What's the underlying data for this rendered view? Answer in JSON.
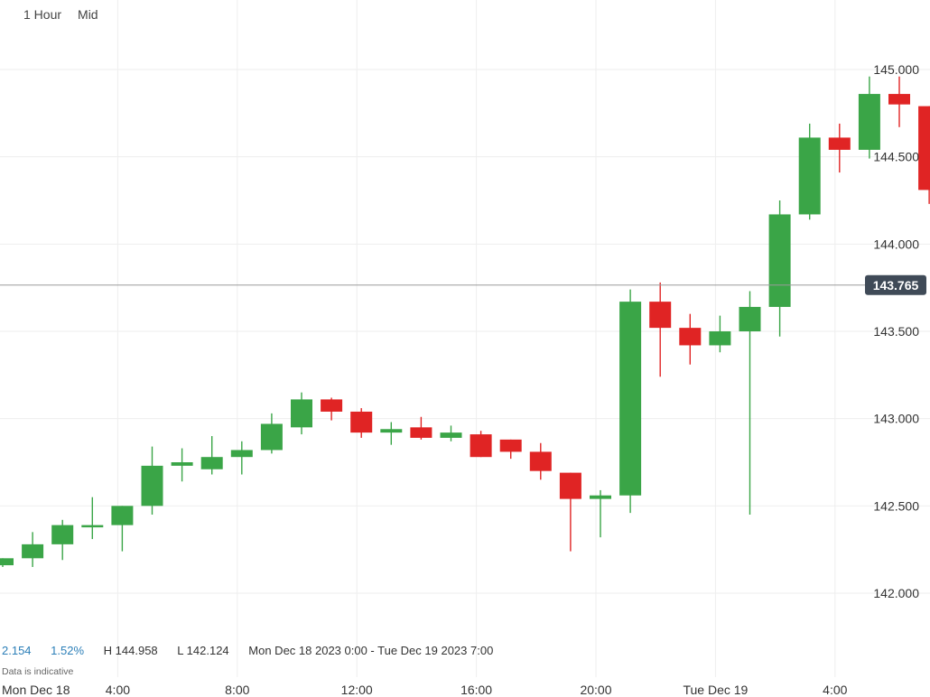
{
  "toolbar": {
    "interval": "1 Hour",
    "price_type": "Mid"
  },
  "stats": {
    "change": "2.154",
    "change_pct": "1.52%",
    "high": "H 144.958",
    "low": "L 142.124",
    "range": "Mon Dec 18 2023 0:00 - Tue Dec 19 2023 7:00"
  },
  "note": "Data is indicative",
  "colors": {
    "up": "#3aa547",
    "down": "#e02424",
    "grid": "#eeeeee",
    "current_line": "#9a9a9a",
    "current_bg": "#3f4a57"
  },
  "chart_data": {
    "type": "candlestick",
    "y_ticks": [
      "142.000",
      "142.500",
      "143.000",
      "143.500",
      "144.000",
      "144.500",
      "145.000"
    ],
    "ylim": [
      141.65,
      145.2
    ],
    "x_tick_labels": [
      "Mon Dec 18",
      "4:00",
      "8:00",
      "12:00",
      "16:00",
      "20:00",
      "Tue Dec 19",
      "4:00"
    ],
    "current_price": "143.765",
    "candles": [
      {
        "hour": "Mon 1:00",
        "o": 142.16,
        "h": 142.2,
        "l": 142.15,
        "c": 142.2
      },
      {
        "hour": "Mon 2:00",
        "o": 142.2,
        "h": 142.35,
        "l": 142.15,
        "c": 142.28
      },
      {
        "hour": "Mon 3:00",
        "o": 142.28,
        "h": 142.42,
        "l": 142.19,
        "c": 142.39
      },
      {
        "hour": "Mon 4:00",
        "o": 142.39,
        "h": 142.55,
        "l": 142.31,
        "c": 142.39
      },
      {
        "hour": "Mon 5:00",
        "o": 142.39,
        "h": 142.5,
        "l": 142.24,
        "c": 142.5
      },
      {
        "hour": "Mon 6:00",
        "o": 142.5,
        "h": 142.84,
        "l": 142.45,
        "c": 142.73
      },
      {
        "hour": "Mon 7:00",
        "o": 142.73,
        "h": 142.83,
        "l": 142.64,
        "c": 142.75
      },
      {
        "hour": "Mon 8:00",
        "o": 142.71,
        "h": 142.9,
        "l": 142.68,
        "c": 142.78
      },
      {
        "hour": "Mon 9:00",
        "o": 142.78,
        "h": 142.87,
        "l": 142.68,
        "c": 142.82
      },
      {
        "hour": "Mon 10:00",
        "o": 142.82,
        "h": 143.03,
        "l": 142.8,
        "c": 142.97
      },
      {
        "hour": "Mon 11:00",
        "o": 142.95,
        "h": 143.15,
        "l": 142.91,
        "c": 143.11
      },
      {
        "hour": "Mon 12:00",
        "o": 143.11,
        "h": 143.12,
        "l": 142.99,
        "c": 143.04
      },
      {
        "hour": "Mon 13:00",
        "o": 143.04,
        "h": 143.06,
        "l": 142.89,
        "c": 142.92
      },
      {
        "hour": "Mon 14:00",
        "o": 142.92,
        "h": 142.98,
        "l": 142.85,
        "c": 142.94
      },
      {
        "hour": "Mon 15:00",
        "o": 142.95,
        "h": 143.01,
        "l": 142.88,
        "c": 142.89
      },
      {
        "hour": "Mon 16:00",
        "o": 142.89,
        "h": 142.96,
        "l": 142.87,
        "c": 142.92
      },
      {
        "hour": "Mon 17:00",
        "o": 142.91,
        "h": 142.93,
        "l": 142.78,
        "c": 142.78
      },
      {
        "hour": "Mon 18:00",
        "o": 142.88,
        "h": 142.88,
        "l": 142.77,
        "c": 142.81
      },
      {
        "hour": "Mon 19:00",
        "o": 142.81,
        "h": 142.86,
        "l": 142.65,
        "c": 142.7
      },
      {
        "hour": "Mon 20:00",
        "o": 142.69,
        "h": 142.69,
        "l": 142.24,
        "c": 142.54
      },
      {
        "hour": "Mon 21:00",
        "o": 142.54,
        "h": 142.59,
        "l": 142.32,
        "c": 142.56
      },
      {
        "hour": "Mon 22:00",
        "o": 142.56,
        "h": 143.74,
        "l": 142.46,
        "c": 143.67
      },
      {
        "hour": "Mon 23:00",
        "o": 143.67,
        "h": 143.78,
        "l": 143.24,
        "c": 143.52
      },
      {
        "hour": "Tue 0:00",
        "o": 143.52,
        "h": 143.6,
        "l": 143.31,
        "c": 143.42
      },
      {
        "hour": "Tue 1:00",
        "o": 143.42,
        "h": 143.59,
        "l": 143.38,
        "c": 143.5
      },
      {
        "hour": "Tue 2:00",
        "o": 143.5,
        "h": 143.73,
        "l": 142.45,
        "c": 143.64
      },
      {
        "hour": "Tue 3:00",
        "o": 143.64,
        "h": 144.25,
        "l": 143.47,
        "c": 144.17
      },
      {
        "hour": "Tue 4:00",
        "o": 144.17,
        "h": 144.69,
        "l": 144.14,
        "c": 144.61
      },
      {
        "hour": "Tue 5:00",
        "o": 144.61,
        "h": 144.69,
        "l": 144.41,
        "c": 144.54
      },
      {
        "hour": "Tue 6:00",
        "o": 144.54,
        "h": 144.96,
        "l": 144.49,
        "c": 144.86
      },
      {
        "hour": "Tue 7:00",
        "o": 144.86,
        "h": 144.96,
        "l": 144.67,
        "c": 144.8
      },
      {
        "hour": "Tue 8:00",
        "o": 144.79,
        "h": 144.79,
        "l": 144.23,
        "c": 144.31
      }
    ]
  }
}
